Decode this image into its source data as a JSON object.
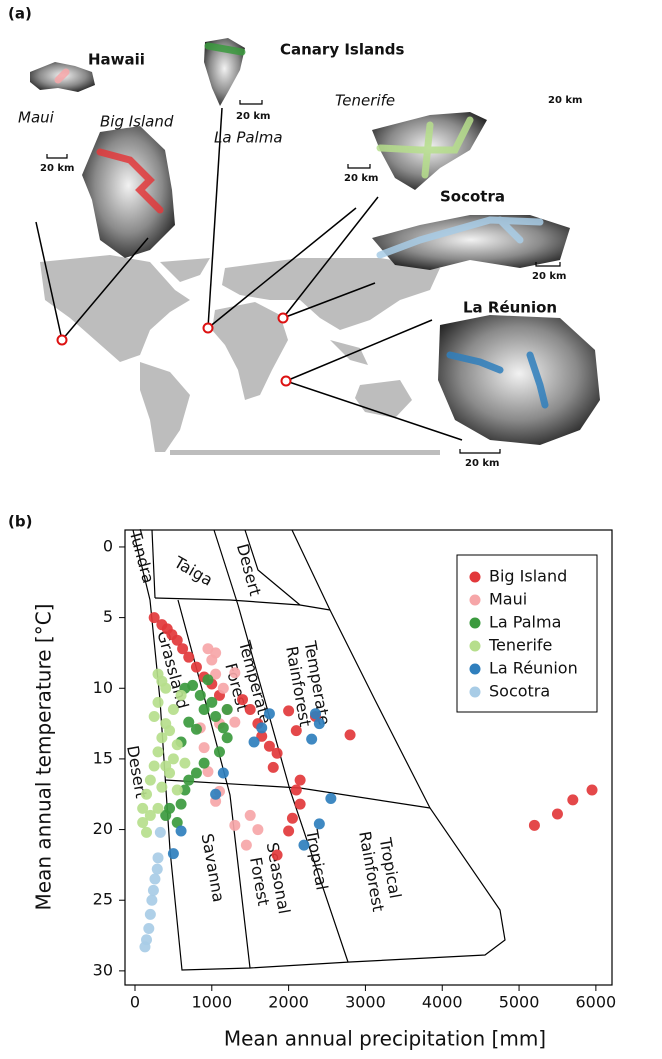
{
  "panel_a": {
    "label": "(a)",
    "groups": [
      "Hawaii",
      "Canary Islands",
      "Socotra",
      "La Réunion"
    ],
    "islands": [
      "Maui",
      "Big Island",
      "La Palma",
      "Tenerife"
    ],
    "scale_labels": [
      "20 km",
      "20 km",
      "20 km",
      "20 km",
      "20 km",
      "20 km"
    ]
  },
  "chart_data": {
    "type": "scatter",
    "panel_label": "(b)",
    "x_label": "Mean annual precipitation [mm]",
    "y_label": "Mean annual temperature [°C]",
    "xlim": [
      -130,
      6210
    ],
    "ylim": [
      31,
      -1.2
    ],
    "xticks": [
      0,
      1000,
      2000,
      3000,
      4000,
      5000,
      6000
    ],
    "yticks": [
      0,
      5,
      10,
      15,
      20,
      25,
      30
    ],
    "biome_labels": [
      [
        "Tundra"
      ],
      [
        "Taiga"
      ],
      [
        "Desert"
      ],
      [
        "Grassland"
      ],
      [
        "Temperate",
        "Forest"
      ],
      [
        "Temperate",
        "Rainforest"
      ],
      [
        "Desert"
      ],
      [
        "Savanna"
      ],
      [
        "Seasonal",
        "Forest"
      ],
      [
        "Tropical"
      ],
      [
        "Tropical",
        "Rainforest"
      ]
    ],
    "legend": "top-right",
    "series": [
      {
        "name": "Big Island",
        "color": "#e2383b",
        "x": [
          250,
          350,
          420,
          480,
          550,
          620,
          700,
          800,
          900,
          1000,
          1100,
          1400,
          1500,
          1600,
          1650,
          1750,
          1850,
          1800,
          2000,
          2100,
          2150,
          2100,
          2150,
          2050,
          2000,
          2350,
          2800,
          1850,
          5200,
          5500,
          5700,
          5950
        ],
        "y": [
          5.0,
          5.5,
          5.8,
          6.2,
          6.6,
          7.2,
          7.8,
          8.5,
          9.2,
          9.7,
          10.5,
          10.8,
          11.5,
          12.5,
          13.4,
          14.1,
          14.6,
          15.6,
          11.6,
          13.0,
          16.5,
          17.2,
          18.2,
          19.2,
          20.1,
          12.0,
          13.3,
          21.8,
          19.7,
          18.9,
          17.9,
          17.2
        ]
      },
      {
        "name": "Maui",
        "color": "#f6a6a8",
        "x": [
          950,
          1000,
          1050,
          1050,
          1150,
          1300,
          1200,
          1300,
          850,
          900,
          950,
          1100,
          1050,
          1500,
          1600,
          1300,
          1450,
          1100
        ],
        "y": [
          7.2,
          8.0,
          7.5,
          9.0,
          10.0,
          8.9,
          11.5,
          12.4,
          12.8,
          14.2,
          15.9,
          17.3,
          18.0,
          19.0,
          20.0,
          19.7,
          21.1,
          12.5
        ]
      },
      {
        "name": "La Palma",
        "color": "#3b9a3e",
        "x": [
          650,
          750,
          850,
          900,
          1000,
          1050,
          1150,
          1200,
          1100,
          900,
          800,
          700,
          650,
          600,
          450,
          550,
          400,
          700,
          800,
          600,
          950,
          1200
        ],
        "y": [
          10.0,
          9.8,
          10.5,
          11.5,
          11.0,
          12.0,
          12.8,
          13.5,
          14.5,
          15.3,
          16.0,
          16.5,
          17.2,
          18.2,
          18.5,
          19.5,
          19.0,
          12.4,
          12.9,
          13.8,
          9.4,
          11.5
        ]
      },
      {
        "name": "Tenerife",
        "color": "#b6de8c",
        "x": [
          300,
          350,
          400,
          300,
          250,
          400,
          350,
          300,
          250,
          200,
          150,
          100,
          100,
          150,
          350,
          450,
          500,
          550,
          450,
          500,
          600,
          400,
          200,
          300,
          550,
          650
        ],
        "y": [
          9.0,
          9.5,
          10.0,
          11.0,
          12.0,
          12.5,
          13.5,
          14.5,
          15.5,
          16.5,
          17.5,
          18.5,
          19.5,
          20.2,
          17.0,
          16.0,
          15.0,
          14.0,
          13.0,
          11.5,
          10.5,
          15.5,
          19.0,
          18.5,
          17.2,
          15.3
        ]
      },
      {
        "name": "La Réunion",
        "color": "#2f7fbd",
        "x": [
          1550,
          1650,
          1750,
          2350,
          2400,
          2300,
          2550,
          2400,
          2200,
          600,
          500,
          1150,
          1050
        ],
        "y": [
          13.8,
          12.8,
          11.8,
          11.8,
          12.5,
          13.6,
          17.8,
          19.6,
          21.1,
          20.1,
          21.7,
          16.0,
          17.5
        ]
      },
      {
        "name": "Socotra",
        "color": "#a8cce6",
        "x": [
          300,
          290,
          260,
          240,
          220,
          200,
          180,
          150,
          130,
          330
        ],
        "y": [
          22.0,
          22.8,
          23.5,
          24.3,
          25.0,
          26.0,
          27.0,
          27.8,
          28.3,
          20.2
        ]
      }
    ]
  }
}
